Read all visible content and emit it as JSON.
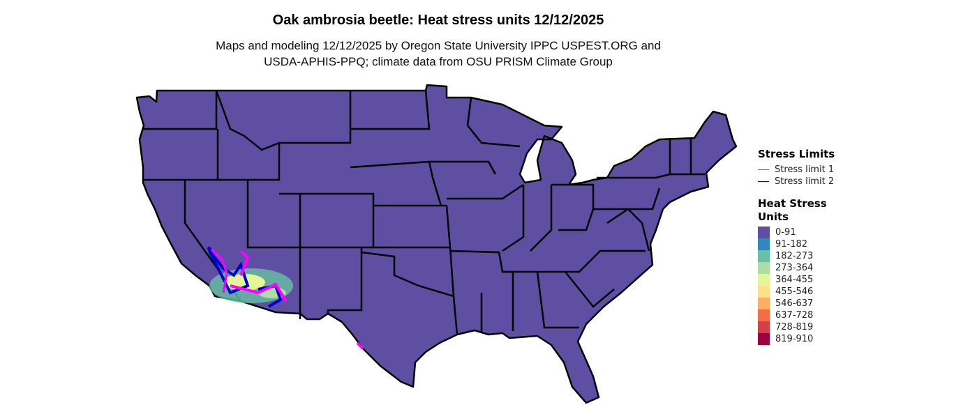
{
  "title": "Oak ambrosia beetle: Heat stress units 12/12/2025",
  "subtitle_line1": "Maps and modeling 12/12/2025 by Oregon State University IPPC USPEST.ORG and",
  "subtitle_line2": "USDA-APHIS-PPQ; climate data from OSU PRISM Climate Group",
  "legend": {
    "stress_title": "Stress Limits",
    "stress_items": [
      {
        "label": "Stress limit 1",
        "color": "#FF00FF"
      },
      {
        "label": "Stress limit 2",
        "color": "#0000CC"
      }
    ],
    "heat_title_line1": "Heat Stress",
    "heat_title_line2": "Units",
    "heat_items": [
      {
        "label": "0-91",
        "color": "#5E4FA2"
      },
      {
        "label": "91-182",
        "color": "#3288BD"
      },
      {
        "label": "182-273",
        "color": "#66C2A5"
      },
      {
        "label": "273-364",
        "color": "#ABDDA4"
      },
      {
        "label": "364-455",
        "color": "#E6F598"
      },
      {
        "label": "455-546",
        "color": "#FEE08B"
      },
      {
        "label": "546-637",
        "color": "#FDAE61"
      },
      {
        "label": "637-728",
        "color": "#F46D43"
      },
      {
        "label": "728-819",
        "color": "#D53E4F"
      },
      {
        "label": "819-910",
        "color": "#9E0142"
      }
    ]
  }
}
